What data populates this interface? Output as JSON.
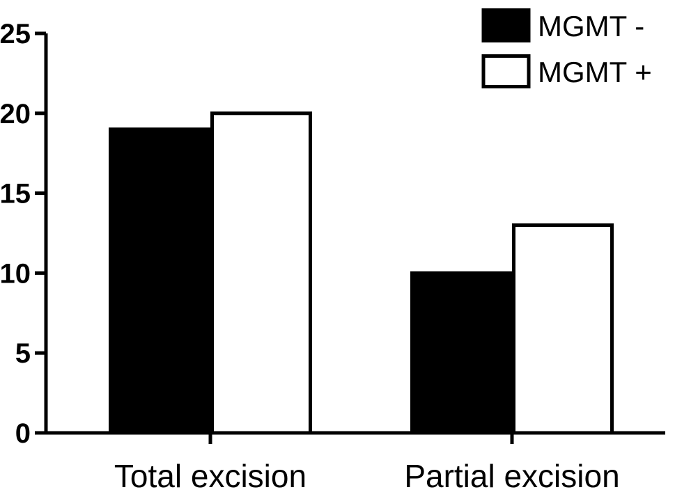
{
  "chart_data": {
    "type": "bar",
    "title": "",
    "xlabel": "",
    "ylabel": "",
    "categories": [
      "Total excision",
      "Partial excision"
    ],
    "series": [
      {
        "name": "MGMT -",
        "values": [
          19,
          10
        ],
        "fill": "#000000",
        "stroke": "#000000"
      },
      {
        "name": "MGMT +",
        "values": [
          20,
          13
        ],
        "fill": "#ffffff",
        "stroke": "#000000"
      }
    ],
    "ylim": [
      0,
      25
    ],
    "yticks": [
      0,
      5,
      10,
      15,
      20,
      25
    ],
    "grid": false,
    "legend_position": "top-right"
  }
}
